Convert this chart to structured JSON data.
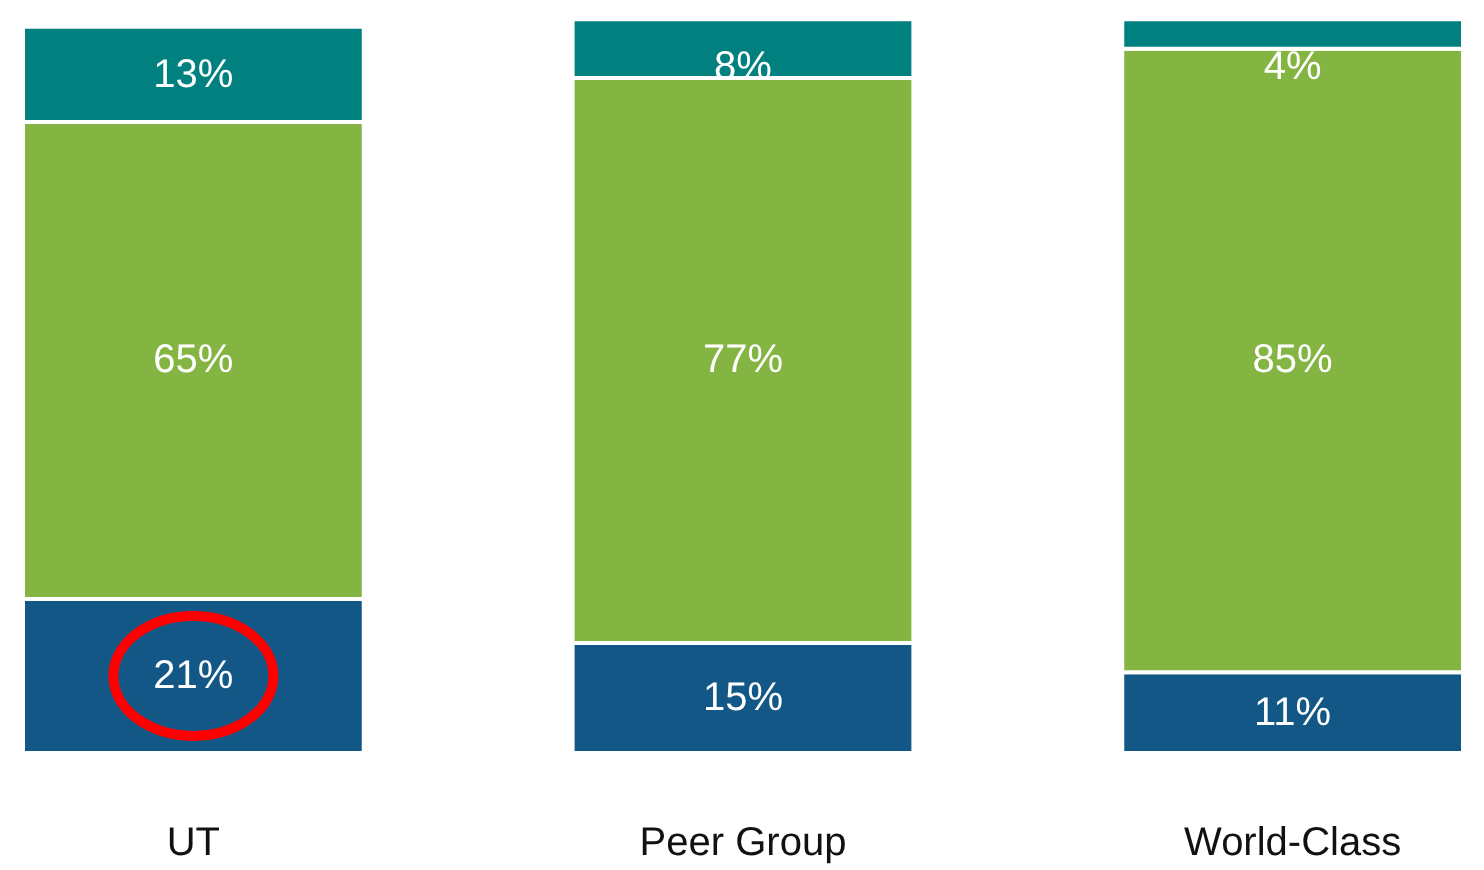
{
  "chart_data": {
    "type": "bar",
    "stacked": true,
    "categories": [
      "UT",
      "Peer Group",
      "World-Class"
    ],
    "series": [
      {
        "color": "#135787",
        "values": [
          21,
          15,
          11
        ],
        "value_labels": [
          "21%",
          "15%",
          "11%"
        ]
      },
      {
        "color": "#84b441",
        "values": [
          65,
          77,
          85
        ],
        "value_labels": [
          "65%",
          "77%",
          "85%"
        ]
      },
      {
        "color": "#00807f",
        "values": [
          13,
          8,
          4
        ],
        "value_labels": [
          "13%",
          "8%",
          "4%"
        ]
      }
    ]
  }
}
